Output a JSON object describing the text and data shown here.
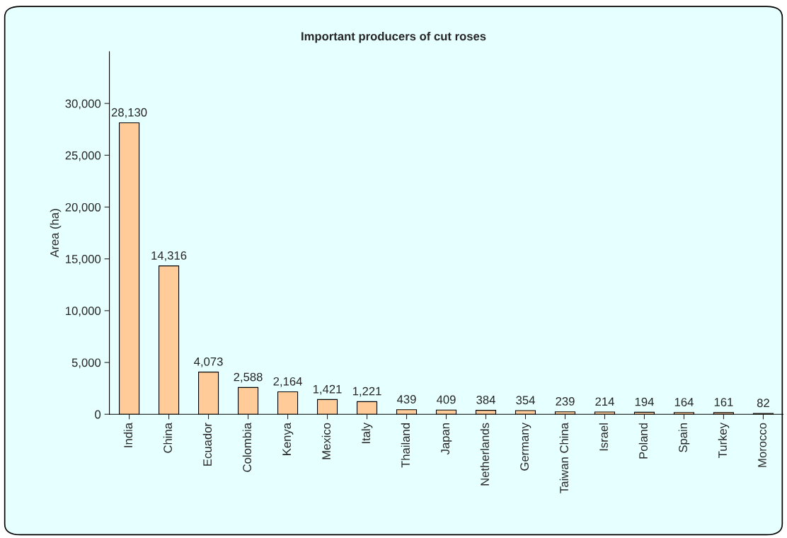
{
  "chart_data": {
    "type": "bar",
    "title": "Important producers of cut roses",
    "ylabel": "Area (ha)",
    "categories": [
      "India",
      "China",
      "Ecuador",
      "Colombia",
      "Kenya",
      "Mexico",
      "Italy",
      "Thailand",
      "Japan",
      "Netherlands",
      "Germany",
      "Taiwan China",
      "Israel",
      "Poland",
      "Spain",
      "Turkey",
      "Morocco"
    ],
    "values": [
      28130,
      14316,
      4073,
      2588,
      2164,
      1421,
      1221,
      439,
      409,
      384,
      354,
      239,
      214,
      194,
      164,
      161,
      82
    ],
    "value_labels": [
      "28,130",
      "14,316",
      "4,073",
      "2,588",
      "2,164",
      "1,421",
      "1,221",
      "439",
      "409",
      "384",
      "354",
      "239",
      "214",
      "194",
      "164",
      "161",
      "82"
    ],
    "color": "#ffcc99",
    "ylim": [
      0,
      35000
    ],
    "yticks": [
      0,
      {
        "value": 5000,
        "label": "5,000"
      },
      {
        "value": 10000,
        "label": "10,000"
      },
      {
        "value": 15000,
        "label": "15,000"
      },
      {
        "value": 20000,
        "label": "20,000"
      },
      {
        "value": 25000,
        "label": "25,000"
      },
      {
        "value": 30000,
        "label": "30,000"
      }
    ],
    "grid": false,
    "legend": false
  }
}
